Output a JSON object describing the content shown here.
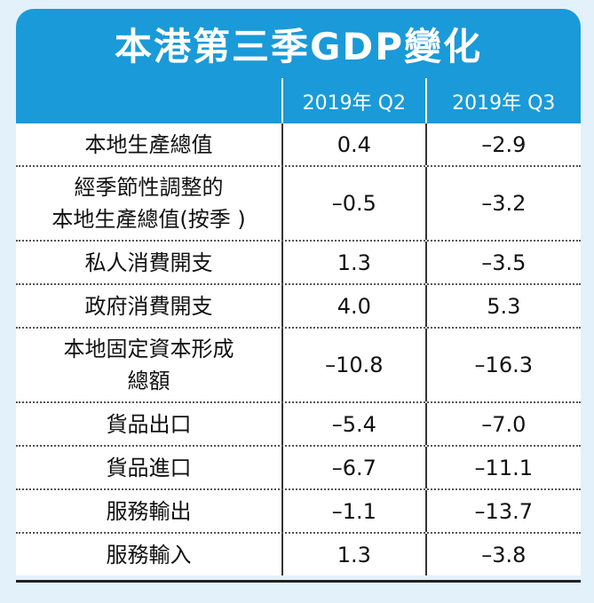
{
  "title": "本港第三季GDP變化",
  "headers": {
    "col1": "2019年 Q2",
    "col2": "2019年 Q3"
  },
  "rows": [
    {
      "label": [
        "本地生產總值"
      ],
      "q2": "0.4",
      "q3": "–2.9"
    },
    {
      "label": [
        "經季節性調整的",
        "本地生產總值(按季 )"
      ],
      "q2": "–0.5",
      "q3": "–3.2"
    },
    {
      "label": [
        "私人消費開支"
      ],
      "q2": "1.3",
      "q3": "–3.5"
    },
    {
      "label": [
        "政府消費開支"
      ],
      "q2": "4.0",
      "q3": "5.3"
    },
    {
      "label": [
        "本地固定資本形成",
        "總額"
      ],
      "q2": "–10.8",
      "q3": "–16.3"
    },
    {
      "label": [
        "貨品出口"
      ],
      "q2": "–5.4",
      "q3": "–7.0"
    },
    {
      "label": [
        "貨品進口"
      ],
      "q2": "–6.7",
      "q3": "–11.1"
    },
    {
      "label": [
        "服務輸出"
      ],
      "q2": "–1.1",
      "q3": "–13.7"
    },
    {
      "label": [
        "服務輸入"
      ],
      "q2": "1.3",
      "q3": "–3.8"
    }
  ],
  "colors": {
    "accent": "#1a9ad8",
    "background": "#e3f1fb"
  }
}
